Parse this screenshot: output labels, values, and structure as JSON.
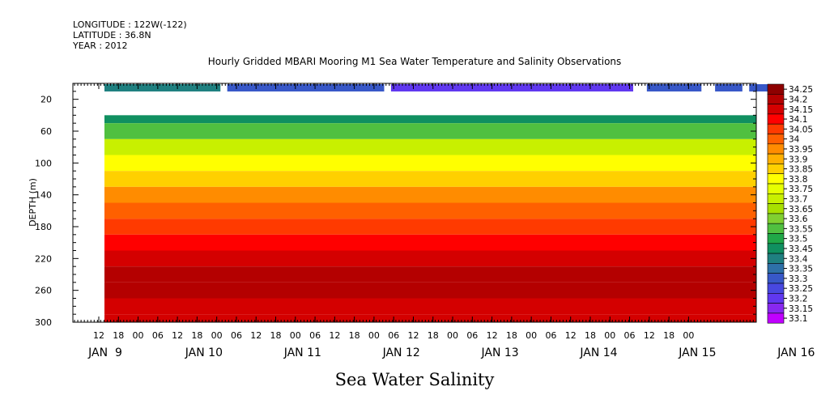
{
  "header": {
    "longitude": "LONGITUDE : 122W(-122)",
    "latitude": "LATITUDE : 36.8N",
    "year": "YEAR : 2012",
    "title": "Hourly Gridded MBARI Mooring M1 Sea Water Temperature and Salinity Observations"
  },
  "chart_data": {
    "type": "heatmap",
    "title": "Hourly Gridded MBARI Mooring M1 Sea Water Temperature and Salinity Observations",
    "xlabel": "Sea Water Salinity",
    "ylabel": "DEPTH (m)",
    "ylim": [
      300,
      0
    ],
    "y_ticks": [
      20,
      60,
      100,
      140,
      180,
      220,
      260,
      300
    ],
    "x_hour_ticks": [
      "12",
      "18",
      "00",
      "06",
      "12",
      "18",
      "00",
      "06",
      "12",
      "18",
      "00",
      "06",
      "12",
      "18",
      "00",
      "06",
      "12",
      "18",
      "00",
      "06",
      "12",
      "18",
      "00",
      "06",
      "12",
      "18",
      "00",
      "06",
      "12",
      "18",
      "00"
    ],
    "x_day_labels": [
      "JAN  9",
      "JAN 10",
      "JAN 11",
      "JAN 12",
      "JAN 13",
      "JAN 14",
      "JAN 15",
      "JAN 16"
    ],
    "colorbar_levels": [
      "34.25",
      "34.2",
      "34.15",
      "34.1",
      "34.05",
      "34",
      "33.95",
      "33.9",
      "33.85",
      "33.8",
      "33.75",
      "33.7",
      "33.65",
      "33.6",
      "33.55",
      "33.5",
      "33.45",
      "33.4",
      "33.35",
      "33.3",
      "33.25",
      "33.2",
      "33.15",
      "33.1"
    ],
    "colorbar_colors": [
      "#8e0000",
      "#b40000",
      "#d40000",
      "#ff0000",
      "#ff3a00",
      "#ff6000",
      "#ff8c00",
      "#ffb000",
      "#ffd000",
      "#ffff00",
      "#e6ff00",
      "#c8f000",
      "#a8e000",
      "#80d030",
      "#50c040",
      "#20a848",
      "#109060",
      "#1f8080",
      "#2e70a8",
      "#3858c8",
      "#4848e0",
      "#6038f0",
      "#8828f0",
      "#c000ff"
    ],
    "surface_bar": [
      {
        "start_hour": 0,
        "end_hour": 34,
        "value": 33.4
      },
      {
        "start_hour": 36,
        "end_hour": 82,
        "value": 33.3
      },
      {
        "start_hour": 84,
        "end_hour": 155,
        "value": 33.2
      },
      {
        "start_hour": 159,
        "end_hour": 175,
        "value": 33.3
      },
      {
        "start_hour": 179,
        "end_hour": 187,
        "value": 33.3
      },
      {
        "start_hour": 189,
        "end_hour": 195,
        "value": 33.3
      }
    ],
    "depth_profile": [
      {
        "depth": 40,
        "value": 33.45
      },
      {
        "depth": 60,
        "value": 33.55
      },
      {
        "depth": 80,
        "value": 33.7
      },
      {
        "depth": 100,
        "value": 33.8
      },
      {
        "depth": 120,
        "value": 33.85
      },
      {
        "depth": 140,
        "value": 33.95
      },
      {
        "depth": 160,
        "value": 34.0
      },
      {
        "depth": 180,
        "value": 34.05
      },
      {
        "depth": 200,
        "value": 34.1
      },
      {
        "depth": 220,
        "value": 34.15
      },
      {
        "depth": 240,
        "value": 34.2
      },
      {
        "depth": 260,
        "value": 34.2
      },
      {
        "depth": 280,
        "value": 34.15
      },
      {
        "depth": 300,
        "value": 34.15
      }
    ]
  }
}
